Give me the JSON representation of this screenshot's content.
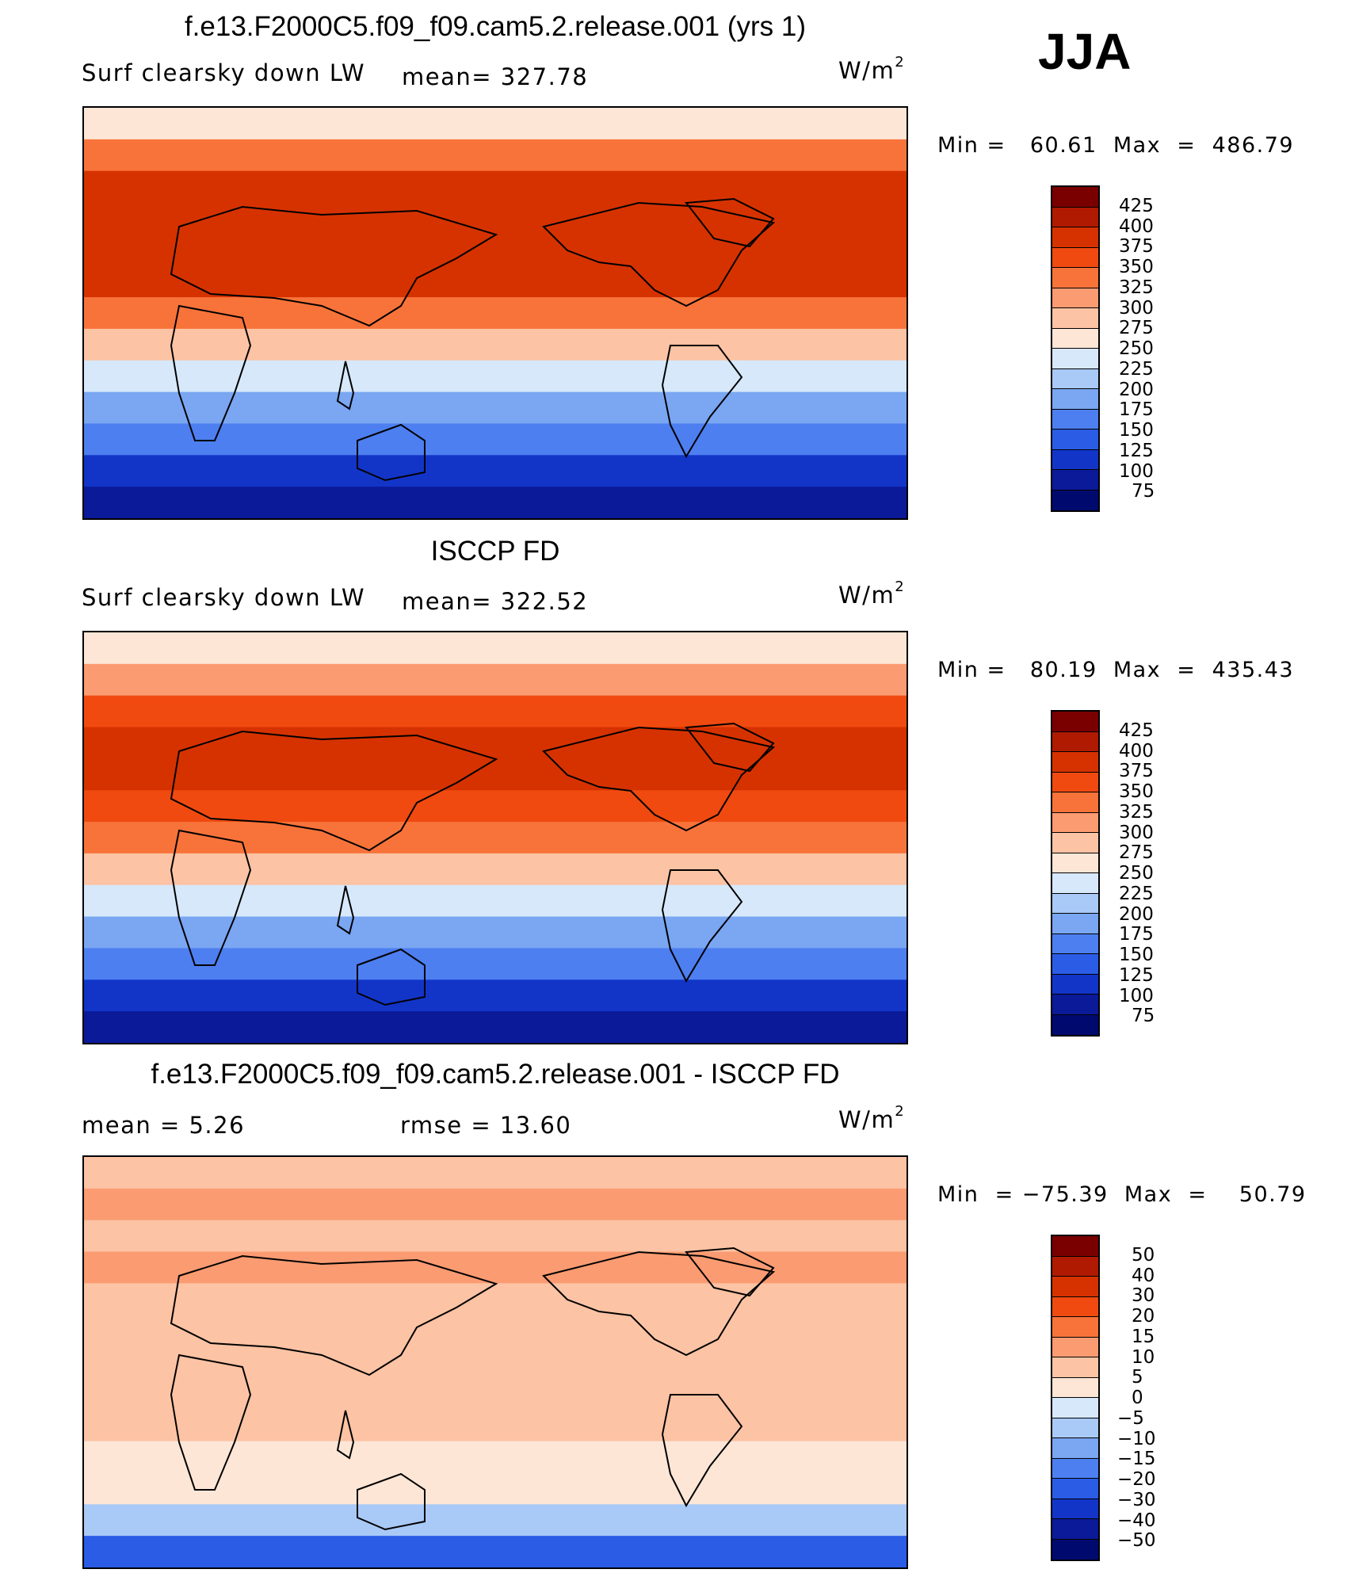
{
  "season": "JJA",
  "units_prefix": "W/m",
  "units_exp": "2",
  "panels": [
    {
      "id": "model",
      "title": "f.e13.F2000C5.f09_f09.cam5.2.release.001 (yrs 1)",
      "left_label": "Surf clearsky down LW",
      "center_label": "mean= 327.78",
      "min_max": "Min =   60.61  Max  =  486.79"
    },
    {
      "id": "obs",
      "title": "ISCCP FD",
      "left_label": "Surf clearsky down LW",
      "center_label": "mean= 322.52",
      "min_max": "Min =   80.19  Max  =  435.43"
    },
    {
      "id": "diff",
      "title": "f.e13.F2000C5.f09_f09.cam5.2.release.001 - ISCCP FD",
      "left_label": "mean =     5.26",
      "center_label": "rmse =    13.60",
      "min_max": "Min  = −75.39  Max  =    50.79"
    }
  ],
  "chart_data": [
    {
      "type": "heatmap",
      "title": "f.e13.F2000C5.f09_f09.cam5.2.release.001 (yrs 1)",
      "variable": "Surf clearsky down LW",
      "units": "W/m2",
      "mean": 327.78,
      "min": 60.61,
      "max": 486.79,
      "contour_levels": [
        425,
        400,
        375,
        350,
        325,
        300,
        275,
        250,
        225,
        200,
        175,
        150,
        125,
        100,
        75
      ],
      "colorbar_labels": [
        "425",
        "400",
        "375",
        "350",
        "325",
        "300",
        "275",
        "250",
        "225",
        "200",
        "175",
        "150",
        "125",
        "100",
        "75"
      ],
      "colorbar_colors": [
        "#7a0000",
        "#b01a00",
        "#d63200",
        "#f04a10",
        "#f8733a",
        "#fb9b72",
        "#fcc3a4",
        "#fde6d6",
        "#d6e8fa",
        "#a9c9f7",
        "#7aa6f2",
        "#4d7ff0",
        "#2a5ce6",
        "#1235c8",
        "#0a1a98",
        "#000a6e"
      ],
      "zonal_band_values": [
        260,
        330,
        380,
        390,
        395,
        380,
        340,
        290,
        240,
        190,
        150,
        115,
        85
      ]
    },
    {
      "type": "heatmap",
      "title": "ISCCP FD",
      "variable": "Surf clearsky down LW",
      "units": "W/m2",
      "mean": 322.52,
      "min": 80.19,
      "max": 435.43,
      "contour_levels": [
        425,
        400,
        375,
        350,
        325,
        300,
        275,
        250,
        225,
        200,
        175,
        150,
        125,
        100,
        75
      ],
      "colorbar_labels": [
        "425",
        "400",
        "375",
        "350",
        "325",
        "300",
        "275",
        "250",
        "225",
        "200",
        "175",
        "150",
        "125",
        "100",
        "75"
      ],
      "colorbar_colors": [
        "#7a0000",
        "#b01a00",
        "#d63200",
        "#f04a10",
        "#f8733a",
        "#fb9b72",
        "#fcc3a4",
        "#fde6d6",
        "#d6e8fa",
        "#a9c9f7",
        "#7aa6f2",
        "#4d7ff0",
        "#2a5ce6",
        "#1235c8",
        "#0a1a98",
        "#000a6e"
      ],
      "zonal_band_values": [
        255,
        320,
        365,
        385,
        390,
        370,
        330,
        285,
        240,
        190,
        155,
        120,
        95
      ]
    },
    {
      "type": "heatmap",
      "title": "f.e13.F2000C5.f09_f09.cam5.2.release.001 - ISCCP FD",
      "variable": "difference",
      "units": "W/m2",
      "mean": 5.26,
      "rmse": 13.6,
      "min": -75.39,
      "max": 50.79,
      "contour_levels": [
        50,
        40,
        30,
        20,
        15,
        10,
        5,
        0,
        -5,
        -10,
        -15,
        -20,
        -30,
        -40,
        -50
      ],
      "colorbar_labels": [
        "50",
        "40",
        "30",
        "20",
        "15",
        "10",
        "5",
        "0",
        "−5",
        "−10",
        "−15",
        "−20",
        "−30",
        "−40",
        "−50"
      ],
      "colorbar_colors": [
        "#7a0000",
        "#b01a00",
        "#d63200",
        "#f04a10",
        "#f8733a",
        "#fb9b72",
        "#fcc3a4",
        "#fde6d6",
        "#d6e8fa",
        "#a9c9f7",
        "#7aa6f2",
        "#4d7ff0",
        "#2a5ce6",
        "#1235c8",
        "#0a1a98",
        "#000a6e"
      ],
      "zonal_band_values": [
        5,
        12,
        8,
        10,
        5,
        8,
        6,
        8,
        5,
        3,
        4,
        -8,
        -25
      ]
    }
  ]
}
